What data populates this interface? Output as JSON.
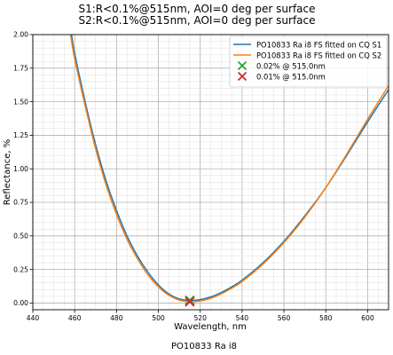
{
  "chart_data": {
    "type": "line",
    "title_lines": [
      "S1:R<0.1%@515nm, AOI=0 deg per surface",
      "S2:R<0.1%@515nm, AOI=0 deg per surface"
    ],
    "footer": "PO10833 Ra i8",
    "xlabel": "Wavelength, nm",
    "ylabel": "Reflectance, %",
    "xlim": [
      440,
      610
    ],
    "ylim": [
      -0.05,
      2.0
    ],
    "x_ticks": [
      440,
      460,
      480,
      500,
      520,
      540,
      560,
      580,
      600
    ],
    "y_ticks": [
      0.0,
      0.25,
      0.5,
      0.75,
      1.0,
      1.25,
      1.5,
      1.75,
      2.0
    ],
    "y_tick_labels": [
      "0.00",
      "0.25",
      "0.50",
      "0.75",
      "1.00",
      "1.25",
      "1.50",
      "1.75",
      "2.00"
    ],
    "grid": true,
    "legend_position": "top-right",
    "series": [
      {
        "name": "PO10833 Ra i8 FS fitted on CQ S1",
        "color": "#1f77b4",
        "x": [
          458.5,
          460,
          465,
          470,
          475,
          480,
          485,
          490,
          495,
          500,
          505,
          510,
          515,
          520,
          525,
          530,
          535,
          540,
          550,
          560,
          570,
          580,
          590,
          600,
          610
        ],
        "y": [
          2.0,
          1.86,
          1.5,
          1.18,
          0.91,
          0.69,
          0.5,
          0.35,
          0.23,
          0.135,
          0.068,
          0.03,
          0.02,
          0.025,
          0.045,
          0.078,
          0.12,
          0.17,
          0.3,
          0.46,
          0.65,
          0.86,
          1.1,
          1.35,
          1.59
        ]
      },
      {
        "name": "PO10833 Ra i8 FS fitted on CQ S2",
        "color": "#ff7f0e",
        "x": [
          458,
          460,
          465,
          470,
          475,
          480,
          485,
          490,
          495,
          500,
          505,
          510,
          515,
          520,
          525,
          530,
          535,
          540,
          550,
          560,
          570,
          580,
          590,
          600,
          610
        ],
        "y": [
          2.0,
          1.82,
          1.47,
          1.15,
          0.88,
          0.66,
          0.475,
          0.33,
          0.21,
          0.12,
          0.058,
          0.022,
          0.01,
          0.015,
          0.035,
          0.068,
          0.11,
          0.16,
          0.29,
          0.45,
          0.64,
          0.86,
          1.11,
          1.37,
          1.62
        ]
      }
    ],
    "markers": [
      {
        "label": "0.02% @ 515.0nm",
        "x": 515.0,
        "y": 0.02,
        "color": "#2ca02c",
        "symbol": "x"
      },
      {
        "label": "0.01% @ 515.0nm",
        "x": 515.0,
        "y": 0.01,
        "color": "#d62728",
        "symbol": "x"
      }
    ]
  }
}
